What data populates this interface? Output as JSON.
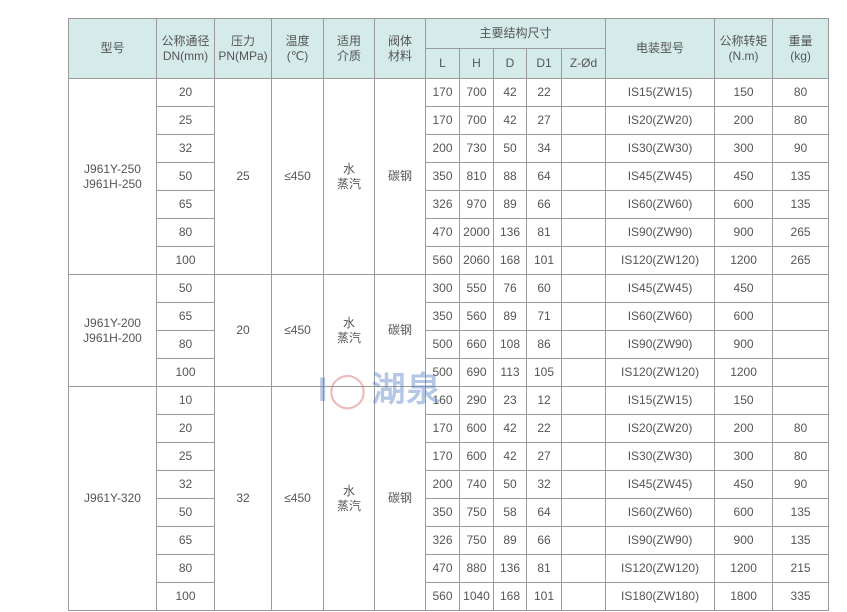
{
  "headers": {
    "model": "型号",
    "dn": [
      "公称通径",
      "DN(mm)"
    ],
    "pn": [
      "压力",
      "PN(MPa)"
    ],
    "temp": [
      "温度",
      "(℃)"
    ],
    "medium": [
      "适用",
      "介质"
    ],
    "material": [
      "阀体",
      "材料"
    ],
    "dims": "主要结构尺寸",
    "dim_cols": [
      "L",
      "H",
      "D",
      "D1",
      "Z-Ød"
    ],
    "actuator": "电装型号",
    "torque": [
      "公称转矩",
      "(N.m)"
    ],
    "weight": [
      "重量",
      "(kg)"
    ]
  },
  "groups": [
    {
      "models": [
        "J961Y-250",
        "J961H-250"
      ],
      "pn": "25",
      "temp": "≤450",
      "medium": [
        "水",
        "蒸汽"
      ],
      "material": "碳钢",
      "rows": [
        [
          "20",
          "170",
          "700",
          "42",
          "22",
          "",
          "IS15(ZW15)",
          "150",
          "80"
        ],
        [
          "25",
          "170",
          "700",
          "42",
          "27",
          "",
          "IS20(ZW20)",
          "200",
          "80"
        ],
        [
          "32",
          "200",
          "730",
          "50",
          "34",
          "",
          "IS30(ZW30)",
          "300",
          "90"
        ],
        [
          "50",
          "350",
          "810",
          "88",
          "64",
          "",
          "IS45(ZW45)",
          "450",
          "135"
        ],
        [
          "65",
          "326",
          "970",
          "89",
          "66",
          "",
          "IS60(ZW60)",
          "600",
          "135"
        ],
        [
          "80",
          "470",
          "2000",
          "136",
          "81",
          "",
          "IS90(ZW90)",
          "900",
          "265"
        ],
        [
          "100",
          "560",
          "2060",
          "168",
          "101",
          "",
          "IS120(ZW120)",
          "1200",
          "265"
        ]
      ]
    },
    {
      "models": [
        "J961Y-200",
        "J961H-200"
      ],
      "pn": "20",
      "temp": "≤450",
      "medium": [
        "水",
        "蒸汽"
      ],
      "material": "碳钢",
      "rows": [
        [
          "50",
          "300",
          "550",
          "76",
          "60",
          "",
          "IS45(ZW45)",
          "450",
          ""
        ],
        [
          "65",
          "350",
          "560",
          "89",
          "71",
          "",
          "IS60(ZW60)",
          "600",
          ""
        ],
        [
          "80",
          "500",
          "660",
          "108",
          "86",
          "",
          "IS90(ZW90)",
          "900",
          ""
        ],
        [
          "100",
          "500",
          "690",
          "113",
          "105",
          "",
          "IS120(ZW120)",
          "1200",
          ""
        ]
      ]
    },
    {
      "models": [
        "J961Y-320"
      ],
      "pn": "32",
      "temp": "≤450",
      "medium": [
        "水",
        "蒸汽"
      ],
      "material": "碳钢",
      "rows": [
        [
          "10",
          "160",
          "290",
          "23",
          "12",
          "",
          "IS15(ZW15)",
          "150",
          ""
        ],
        [
          "20",
          "170",
          "600",
          "42",
          "22",
          "",
          "IS20(ZW20)",
          "200",
          "80"
        ],
        [
          "25",
          "170",
          "600",
          "42",
          "27",
          "",
          "IS30(ZW30)",
          "300",
          "80"
        ],
        [
          "32",
          "200",
          "740",
          "50",
          "32",
          "",
          "IS45(ZW45)",
          "450",
          "90"
        ],
        [
          "50",
          "350",
          "750",
          "58",
          "64",
          "",
          "IS60(ZW60)",
          "600",
          "135"
        ],
        [
          "65",
          "326",
          "750",
          "89",
          "66",
          "",
          "IS90(ZW90)",
          "900",
          "135"
        ],
        [
          "80",
          "470",
          "880",
          "136",
          "81",
          "",
          "IS120(ZW120)",
          "1200",
          "215"
        ],
        [
          "100",
          "560",
          "1040",
          "168",
          "101",
          "",
          "IS180(ZW180)",
          "1800",
          "335"
        ]
      ]
    }
  ],
  "watermark": {
    "logo": "H",
    "text": "湖泉"
  }
}
